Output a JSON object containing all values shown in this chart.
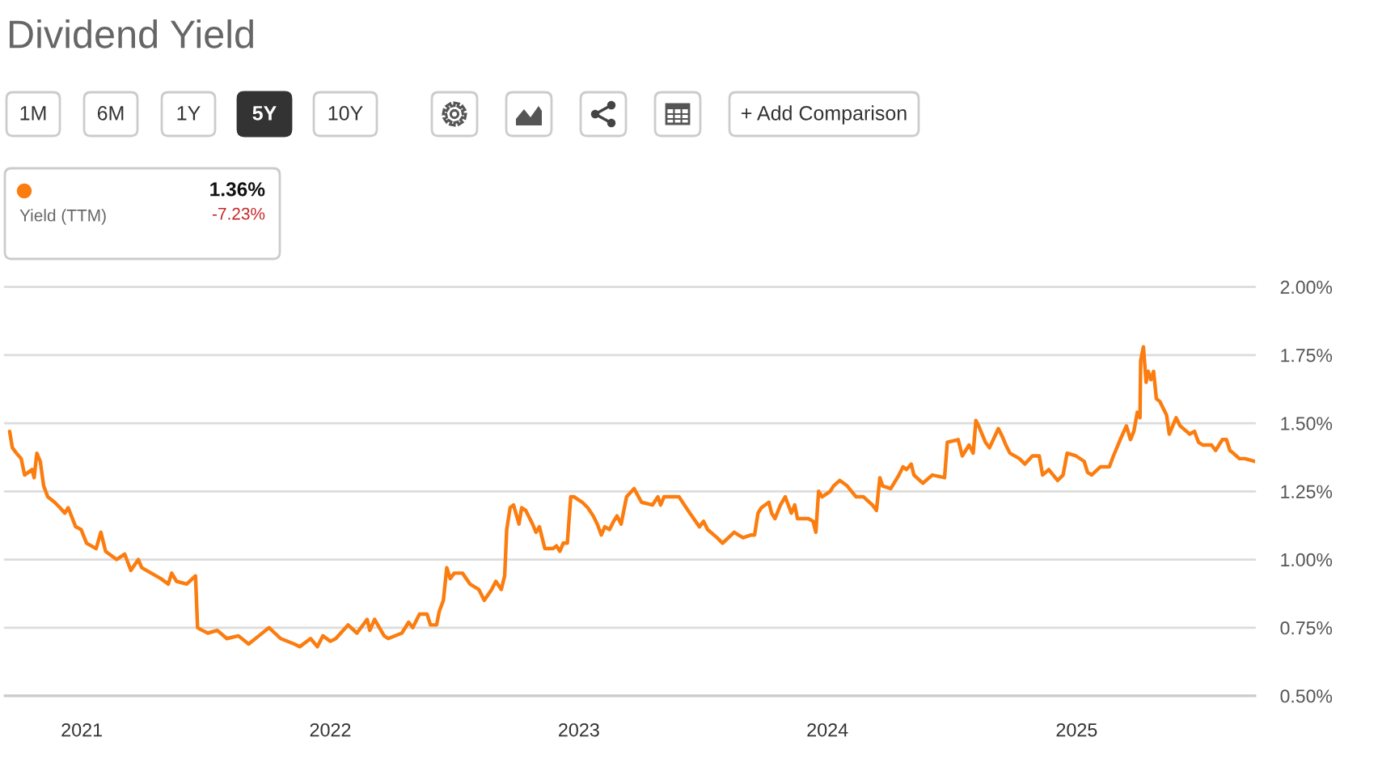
{
  "chart_data": {
    "type": "line",
    "title": "Dividend Yield",
    "annotations": [
      "1M",
      "6M",
      "1Y",
      "5Y",
      "10Y",
      "+ Add Comparison",
      "Yield (TTM)",
      "1.36%",
      "-7.23%"
    ],
    "x": [
      "2020-09-17",
      "2020-09-21",
      "2020-09-27",
      "2020-10-04",
      "2020-10-09",
      "2020-10-20",
      "2020-10-23",
      "2020-10-27",
      "2020-11-01",
      "2020-11-06",
      "2020-11-12",
      "2020-11-22",
      "2020-11-30",
      "2020-12-07",
      "2020-12-12",
      "2020-12-23",
      "2020-12-31",
      "2021-01-08",
      "2021-01-22",
      "2021-01-29",
      "2021-02-05",
      "2021-02-21",
      "2021-03-05",
      "2021-03-14",
      "2021-03-25",
      "2021-03-30",
      "2021-04-13",
      "2021-04-27",
      "2021-05-08",
      "2021-05-13",
      "2021-05-20",
      "2021-06-04",
      "2021-06-17",
      "2021-06-20",
      "2021-06-27",
      "2021-07-05",
      "2021-07-19",
      "2021-08-02",
      "2021-08-19",
      "2021-09-03",
      "2021-09-18",
      "2021-10-03",
      "2021-10-20",
      "2021-11-09",
      "2021-11-17",
      "2021-12-03",
      "2021-12-13",
      "2021-12-21",
      "2022-01-01",
      "2022-01-09",
      "2022-01-27",
      "2022-02-09",
      "2022-02-24",
      "2022-02-28",
      "2022-03-07",
      "2022-03-21",
      "2022-03-27",
      "2022-04-16",
      "2022-04-26",
      "2022-05-02",
      "2022-05-12",
      "2022-05-23",
      "2022-05-28",
      "2022-06-06",
      "2022-06-10",
      "2022-06-16",
      "2022-06-21",
      "2022-06-26",
      "2022-07-02",
      "2022-07-14",
      "2022-07-25",
      "2022-08-07",
      "2022-08-15",
      "2022-08-26",
      "2022-09-01",
      "2022-09-09",
      "2022-09-14",
      "2022-09-17",
      "2022-09-22",
      "2022-09-27",
      "2022-10-05",
      "2022-10-09",
      "2022-10-15",
      "2022-10-25",
      "2022-10-30",
      "2022-11-04",
      "2022-11-12",
      "2022-11-24",
      "2022-11-29",
      "2022-12-04",
      "2022-12-09",
      "2022-12-15",
      "2022-12-20",
      "2022-12-25",
      "2023-01-06",
      "2023-01-14",
      "2023-01-22",
      "2023-01-28",
      "2023-02-03",
      "2023-02-08",
      "2023-02-15",
      "2023-02-21",
      "2023-02-26",
      "2023-03-04",
      "2023-03-12",
      "2023-03-23",
      "2023-04-03",
      "2023-04-19",
      "2023-04-27",
      "2023-05-01",
      "2023-05-06",
      "2023-05-28",
      "2023-06-05",
      "2023-06-13",
      "2023-06-27",
      "2023-07-03",
      "2023-07-09",
      "2023-07-23",
      "2023-07-31",
      "2023-08-17",
      "2023-08-30",
      "2023-09-11",
      "2023-09-16",
      "2023-09-21",
      "2023-09-26",
      "2023-10-07",
      "2023-10-11",
      "2023-10-16",
      "2023-10-24",
      "2023-10-31",
      "2023-11-09",
      "2023-11-14",
      "2023-11-18",
      "2023-12-04",
      "2023-12-11",
      "2023-12-15",
      "2023-12-19",
      "2023-12-24",
      "2024-01-05",
      "2024-01-10",
      "2024-01-19",
      "2024-01-30",
      "2024-02-12",
      "2024-02-23",
      "2024-03-07",
      "2024-03-13",
      "2024-03-18",
      "2024-03-22",
      "2024-04-03",
      "2024-04-15",
      "2024-04-21",
      "2024-04-26",
      "2024-05-03",
      "2024-05-07",
      "2024-05-20",
      "2024-06-03",
      "2024-06-21",
      "2024-06-25",
      "2024-07-11",
      "2024-07-17",
      "2024-07-27",
      "2024-08-02",
      "2024-08-06",
      "2024-08-10",
      "2024-08-20",
      "2024-08-26",
      "2024-09-08",
      "2024-09-14",
      "2024-09-19",
      "2024-09-25",
      "2024-10-09",
      "2024-10-17",
      "2024-10-28",
      "2024-11-07",
      "2024-11-12",
      "2024-11-21",
      "2024-12-04",
      "2024-12-12",
      "2024-12-18",
      "2024-12-31",
      "2025-01-12",
      "2025-01-17",
      "2025-01-23",
      "2025-02-05",
      "2025-02-18",
      "2025-02-24",
      "2025-03-06",
      "2025-03-15",
      "2025-03-21",
      "2025-03-26",
      "2025-03-31",
      "2025-04-04",
      "2025-04-05",
      "2025-04-09",
      "2025-04-13",
      "2025-04-16",
      "2025-04-20",
      "2025-04-24",
      "2025-04-28",
      "2025-05-03",
      "2025-05-13",
      "2025-05-17",
      "2025-05-27",
      "2025-06-02",
      "2025-06-16",
      "2025-06-23",
      "2025-06-29",
      "2025-07-05",
      "2025-07-18",
      "2025-07-24",
      "2025-08-03",
      "2025-08-09",
      "2025-08-14",
      "2025-08-19",
      "2025-08-28",
      "2025-09-05",
      "2025-09-19"
    ],
    "series": [
      {
        "color": "#fb7d10",
        "values": [
          1.47,
          1.41,
          1.39,
          1.37,
          1.31,
          1.33,
          1.3,
          1.39,
          1.36,
          1.27,
          1.23,
          1.21,
          1.19,
          1.17,
          1.19,
          1.12,
          1.11,
          1.06,
          1.04,
          1.1,
          1.03,
          1.0,
          1.02,
          0.96,
          1.0,
          0.97,
          0.95,
          0.93,
          0.91,
          0.95,
          0.92,
          0.91,
          0.94,
          0.75,
          0.74,
          0.73,
          0.74,
          0.71,
          0.72,
          0.69,
          0.72,
          0.75,
          0.71,
          0.69,
          0.68,
          0.71,
          0.68,
          0.72,
          0.7,
          0.71,
          0.76,
          0.73,
          0.78,
          0.74,
          0.78,
          0.72,
          0.71,
          0.73,
          0.77,
          0.75,
          0.8,
          0.8,
          0.76,
          0.76,
          0.81,
          0.85,
          0.97,
          0.93,
          0.95,
          0.95,
          0.91,
          0.89,
          0.85,
          0.89,
          0.92,
          0.89,
          0.94,
          1.11,
          1.19,
          1.2,
          1.13,
          1.19,
          1.18,
          1.13,
          1.1,
          1.12,
          1.04,
          1.04,
          1.05,
          1.03,
          1.06,
          1.06,
          1.23,
          1.23,
          1.21,
          1.19,
          1.16,
          1.13,
          1.09,
          1.12,
          1.11,
          1.14,
          1.16,
          1.13,
          1.23,
          1.26,
          1.21,
          1.2,
          1.23,
          1.2,
          1.23,
          1.23,
          1.2,
          1.17,
          1.12,
          1.14,
          1.11,
          1.08,
          1.06,
          1.1,
          1.08,
          1.09,
          1.09,
          1.17,
          1.19,
          1.21,
          1.17,
          1.15,
          1.2,
          1.23,
          1.17,
          1.2,
          1.15,
          1.15,
          1.14,
          1.1,
          1.25,
          1.23,
          1.25,
          1.27,
          1.29,
          1.27,
          1.23,
          1.23,
          1.2,
          1.18,
          1.3,
          1.27,
          1.26,
          1.31,
          1.34,
          1.33,
          1.35,
          1.31,
          1.28,
          1.31,
          1.3,
          1.43,
          1.44,
          1.38,
          1.42,
          1.39,
          1.51,
          1.49,
          1.43,
          1.41,
          1.48,
          1.45,
          1.42,
          1.39,
          1.37,
          1.35,
          1.38,
          1.38,
          1.31,
          1.33,
          1.29,
          1.31,
          1.39,
          1.38,
          1.36,
          1.32,
          1.31,
          1.34,
          1.34,
          1.38,
          1.44,
          1.49,
          1.44,
          1.47,
          1.54,
          1.52,
          1.73,
          1.78,
          1.65,
          1.69,
          1.66,
          1.69,
          1.59,
          1.58,
          1.53,
          1.46,
          1.52,
          1.49,
          1.46,
          1.47,
          1.43,
          1.42,
          1.42,
          1.4,
          1.44,
          1.44,
          1.4,
          1.39,
          1.37,
          1.37,
          1.36
        ]
      }
    ],
    "xlim": [
      "2020-09-10",
      "2025-09-20"
    ],
    "xticks": [
      "2021",
      "2022",
      "2023",
      "2024",
      "2025"
    ],
    "ylim": [
      0.5,
      2.0
    ],
    "yticks": [
      {
        "value": 0.5,
        "label": "0.50%"
      },
      {
        "value": 0.75,
        "label": "0.75%"
      },
      {
        "value": 1.0,
        "label": "1.00%"
      },
      {
        "value": 1.25,
        "label": "1.25%"
      },
      {
        "value": 1.5,
        "label": "1.50%"
      },
      {
        "value": 1.75,
        "label": "1.75%"
      },
      {
        "value": 2.0,
        "label": "2.00%"
      }
    ],
    "grid": "y"
  }
}
